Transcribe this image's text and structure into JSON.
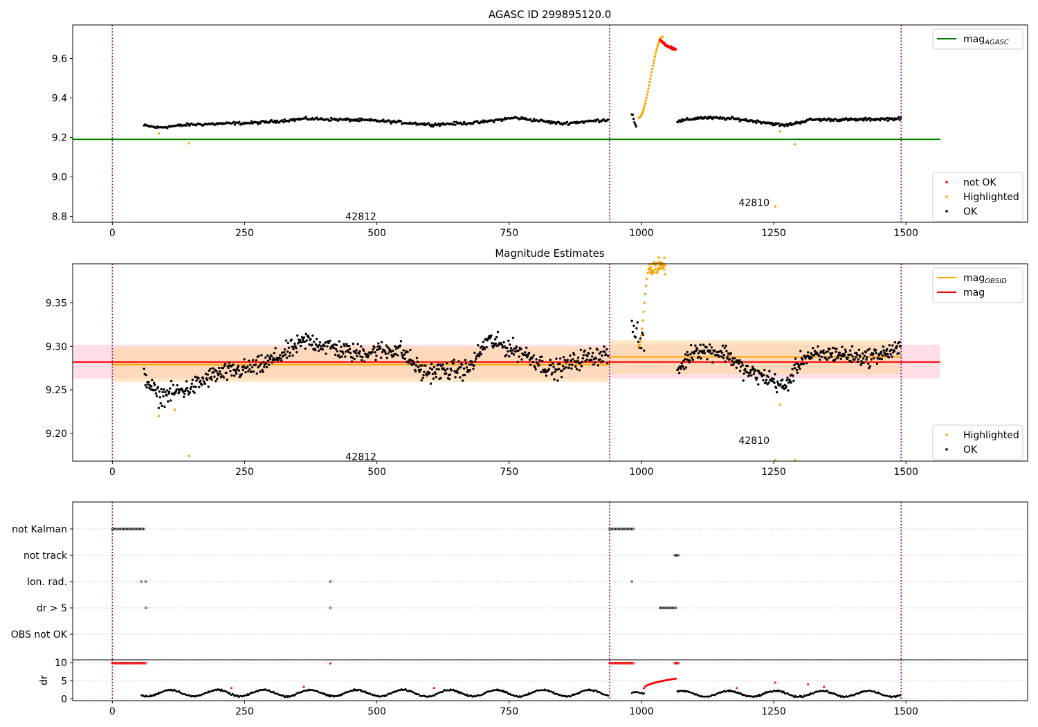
{
  "chart_data": [
    {
      "type": "scatter",
      "title": "AGASC ID 299895120.0",
      "xlim": [
        -75,
        1730
      ],
      "ylim": [
        8.77,
        9.77
      ],
      "xticks": [
        0,
        250,
        500,
        750,
        1000,
        1250,
        1500
      ],
      "yticks": [
        8.8,
        9.0,
        9.2,
        9.4,
        9.6
      ],
      "ytick_labels": [
        "8.8",
        "9.0",
        "9.2",
        "9.4",
        "9.6"
      ],
      "obs_boundaries": [
        0,
        940,
        1491
      ],
      "obs_labels": [
        {
          "text": "42812",
          "x": 470,
          "y": 8.8
        },
        {
          "text": "42810",
          "x": 1213,
          "y": 8.87
        }
      ],
      "lines": [
        {
          "name": "mag",
          "subscript": "AGASC",
          "color": "#008000",
          "x": [
            -75,
            1565
          ],
          "y": [
            9.19,
            9.19
          ]
        }
      ],
      "segments": [
        {
          "x0": 60,
          "x1": 937,
          "base": 9.285,
          "wave": [
            [
              0,
              -0.025
            ],
            [
              0.03,
              -0.035
            ],
            [
              0.1,
              -0.02
            ],
            [
              0.25,
              -0.01
            ],
            [
              0.35,
              0.01
            ],
            [
              0.5,
              0.0
            ],
            [
              0.62,
              -0.02
            ],
            [
              0.72,
              -0.01
            ],
            [
              0.8,
              0.015
            ],
            [
              0.9,
              -0.015
            ],
            [
              1,
              0.005
            ]
          ],
          "noise": 0.008,
          "n": 420,
          "color": "#000000"
        },
        {
          "x0": 982,
          "x1": 990,
          "base": 9.29,
          "wave": [
            [
              0,
              0.03
            ],
            [
              1,
              -0.03
            ]
          ],
          "noise": 0.012,
          "n": 6,
          "color": "#000000"
        },
        {
          "x0": 1068,
          "x1": 1490,
          "base": 9.29,
          "wave": [
            [
              0,
              -0.01
            ],
            [
              0.1,
              0.01
            ],
            [
              0.25,
              0.005
            ],
            [
              0.4,
              -0.015
            ],
            [
              0.48,
              -0.03
            ],
            [
              0.6,
              0.0
            ],
            [
              0.8,
              0.0
            ],
            [
              1,
              0.005
            ]
          ],
          "noise": 0.008,
          "n": 230,
          "color": "#000000"
        }
      ],
      "curves": [
        {
          "x0": 995,
          "x1": 1040,
          "y0": 9.3,
          "y1": 9.71,
          "n": 38,
          "color": "#ffa500",
          "shape": "rise"
        },
        {
          "x0": 1035,
          "x1": 1065,
          "y0": 9.69,
          "y1": 9.64,
          "n": 30,
          "color": "#ff0000",
          "shape": "flat"
        }
      ],
      "points": [
        {
          "series": "Highlighted",
          "x": 88,
          "y": 9.22
        },
        {
          "series": "Highlighted",
          "x": 145,
          "y": 9.17
        },
        {
          "series": "Highlighted",
          "x": 1253,
          "y": 8.85
        },
        {
          "series": "Highlighted",
          "x": 1262,
          "y": 9.23
        },
        {
          "series": "Highlighted",
          "x": 1290,
          "y": 9.165
        }
      ],
      "legend_top": {
        "placement": "upper right",
        "entries": [
          {
            "label": "mag",
            "subscript": "AGASC",
            "color": "#008000"
          }
        ]
      },
      "legend_bottom": {
        "placement": "lower right",
        "entries": [
          {
            "label": "not OK",
            "color": "#ff0000"
          },
          {
            "label": "Highlighted",
            "color": "#ffa500"
          },
          {
            "label": "OK",
            "color": "#000000"
          }
        ]
      }
    },
    {
      "type": "scatter",
      "title": "Magnitude Estimates",
      "xlim": [
        -75,
        1730
      ],
      "ylim": [
        9.168,
        9.395
      ],
      "xticks": [
        0,
        250,
        500,
        750,
        1000,
        1250,
        1500
      ],
      "yticks": [
        9.2,
        9.25,
        9.3,
        9.35
      ],
      "ytick_labels": [
        "9.20",
        "9.25",
        "9.30",
        "9.35"
      ],
      "obs_boundaries": [
        0,
        940,
        1491
      ],
      "obs_labels": [
        {
          "text": "42812",
          "x": 470,
          "y": 9.173
        },
        {
          "text": "42810",
          "x": 1213,
          "y": 9.192
        }
      ],
      "bands": [
        {
          "x0": -75,
          "x1": 1565,
          "y0": 9.263,
          "y1": 9.302,
          "color": "#ffc0cb",
          "opacity": 0.5
        },
        {
          "x0": 0,
          "x1": 940,
          "y0": 9.259,
          "y1": 9.299,
          "color": "#ffd39b",
          "opacity": 0.55
        },
        {
          "x0": 940,
          "x1": 1491,
          "y0": 9.268,
          "y1": 9.307,
          "color": "#ffd39b",
          "opacity": 0.55
        }
      ],
      "lines": [
        {
          "name": "mag",
          "subscript": "",
          "color": "#ff0000",
          "x": [
            -75,
            1565
          ],
          "y": [
            9.282,
            9.282
          ]
        },
        {
          "name": "mag",
          "subscript": "OBSID",
          "color": "#ffa500",
          "x": [
            0,
            940
          ],
          "y": [
            9.279,
            9.279
          ]
        },
        {
          "name": "mag",
          "subscript": "OBSID",
          "color": "#ffa500",
          "x": [
            940,
            1491
          ],
          "y": [
            9.288,
            9.288
          ]
        }
      ],
      "segments": [
        {
          "x0": 60,
          "x1": 937,
          "base": 9.282,
          "wave": [
            [
              0,
              -0.015
            ],
            [
              0.03,
              -0.04
            ],
            [
              0.1,
              -0.03
            ],
            [
              0.15,
              -0.015
            ],
            [
              0.25,
              -0.005
            ],
            [
              0.32,
              0.015
            ],
            [
              0.35,
              0.025
            ],
            [
              0.45,
              0.01
            ],
            [
              0.55,
              0.015
            ],
            [
              0.6,
              -0.012
            ],
            [
              0.7,
              -0.008
            ],
            [
              0.74,
              0.025
            ],
            [
              0.82,
              0.01
            ],
            [
              0.88,
              -0.01
            ],
            [
              0.95,
              0.005
            ],
            [
              1,
              0.01
            ]
          ],
          "noise": 0.012,
          "n": 700,
          "color": "#000000"
        },
        {
          "x0": 982,
          "x1": 1005,
          "base": 9.3,
          "wave": [
            [
              0,
              0.02
            ],
            [
              1,
              0.0
            ]
          ],
          "noise": 0.015,
          "n": 14,
          "color": "#000000"
        },
        {
          "x0": 1068,
          "x1": 1490,
          "base": 9.282,
          "wave": [
            [
              0,
              -0.01
            ],
            [
              0.08,
              0.015
            ],
            [
              0.22,
              0.01
            ],
            [
              0.3,
              -0.01
            ],
            [
              0.42,
              -0.02
            ],
            [
              0.48,
              -0.03
            ],
            [
              0.56,
              0.005
            ],
            [
              0.7,
              0.01
            ],
            [
              0.85,
              0.005
            ],
            [
              1,
              0.015
            ]
          ],
          "noise": 0.011,
          "n": 360,
          "color": "#000000"
        }
      ],
      "curves": [
        {
          "x0": 995,
          "x1": 1015,
          "y0": 9.3,
          "y1": 9.39,
          "n": 14,
          "color": "#ffa500",
          "shape": "rise"
        },
        {
          "x0": 1015,
          "x1": 1045,
          "y0": 9.392,
          "y1": 9.392,
          "n": 40,
          "color": "#ffa500",
          "shape": "flat"
        }
      ],
      "points": [
        {
          "series": "Highlighted",
          "x": 88,
          "y": 9.22
        },
        {
          "series": "Highlighted",
          "x": 118,
          "y": 9.227
        },
        {
          "series": "Highlighted",
          "x": 145,
          "y": 9.174
        },
        {
          "series": "Highlighted",
          "x": 1262,
          "y": 9.233
        },
        {
          "series": "Highlighted",
          "x": 1253,
          "y": 9.169
        },
        {
          "series": "Highlighted",
          "x": 1290,
          "y": 9.169
        }
      ],
      "legend_top": {
        "placement": "upper right",
        "entries": [
          {
            "label": "mag",
            "subscript": "OBSID",
            "color": "#ffa500"
          },
          {
            "label": "mag",
            "subscript": "",
            "color": "#ff0000"
          }
        ]
      },
      "legend_bottom": {
        "placement": "lower right",
        "entries": [
          {
            "label": "Highlighted",
            "color": "#ffa500"
          },
          {
            "label": "OK",
            "color": "#000000"
          }
        ]
      }
    },
    {
      "type": "scatter",
      "title": "",
      "xlim": [
        -75,
        1730
      ],
      "xticks": [
        0,
        250,
        500,
        750,
        1000,
        1250,
        1500
      ],
      "obs_boundaries": [
        0,
        940,
        1491
      ],
      "flag_rows": [
        {
          "label": "not Kalman",
          "ranges": [
            [
              0,
              60
            ],
            [
              940,
              985
            ]
          ],
          "points": []
        },
        {
          "label": "not track",
          "ranges": [
            [
              1063,
              1070
            ]
          ],
          "points": []
        },
        {
          "label": "Ion. rad.",
          "ranges": [],
          "points": [
            55,
            63,
            412,
            982
          ]
        },
        {
          "label": "dr > 5",
          "ranges": [
            [
              1035,
              1065
            ]
          ],
          "points": [
            63,
            412
          ]
        },
        {
          "label": "OBS not OK",
          "ranges": [],
          "points": []
        }
      ],
      "dr": {
        "ylabel": "dr",
        "ylim": [
          -0.5,
          10.8
        ],
        "yticks": [
          0,
          5,
          10
        ],
        "ytick_labels": [
          "0",
          "5",
          "10"
        ],
        "segments": [
          {
            "x0": 55,
            "x1": 937,
            "base": 1.6,
            "amp": 0.9,
            "n": 620
          },
          {
            "x0": 982,
            "x1": 1005,
            "base": 1.2,
            "amp": 0.6,
            "n": 12
          },
          {
            "x0": 1068,
            "x1": 1490,
            "base": 1.4,
            "amp": 0.8,
            "n": 300
          }
        ],
        "red_ranges": [
          [
            0,
            63,
            9.9
          ],
          [
            940,
            985,
            9.9
          ],
          [
            1063,
            1070,
            9.9
          ]
        ],
        "red_points": [
          [
            412,
            9.8
          ],
          [
            225,
            3.0
          ],
          [
            362,
            3.3
          ],
          [
            608,
            3.0
          ],
          [
            1180,
            3.0
          ],
          [
            1253,
            4.5
          ],
          [
            1315,
            4.0
          ],
          [
            1345,
            3.3
          ]
        ],
        "red_curve": {
          "x0": 1005,
          "x1": 1065,
          "y0": 2.9,
          "y1": 5.6
        }
      }
    }
  ]
}
